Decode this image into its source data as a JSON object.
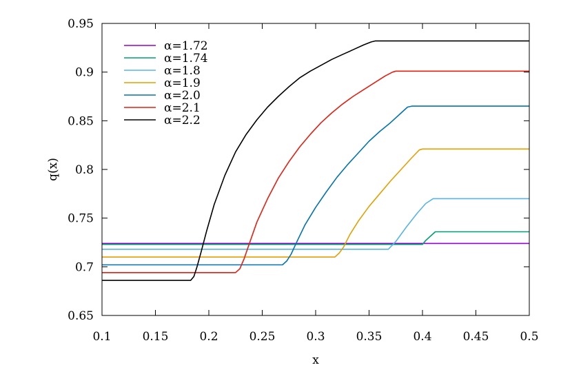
{
  "chart_data": {
    "type": "line",
    "xlabel": "x",
    "ylabel": "q(x)",
    "xlim": [
      0.1,
      0.5
    ],
    "ylim": [
      0.65,
      0.95
    ],
    "xticks": [
      "0.1",
      "0.15",
      "0.2",
      "0.25",
      "0.3",
      "0.35",
      "0.4",
      "0.45",
      "0.5"
    ],
    "yticks": [
      "0.65",
      "0.7",
      "0.75",
      "0.8",
      "0.85",
      "0.9",
      "0.95"
    ],
    "grid": false,
    "legend_position": "top-left",
    "series": [
      {
        "name": "α=1.72",
        "color": "#9400d3",
        "x": [
          0.1,
          0.5
        ],
        "y": [
          0.724,
          0.724
        ]
      },
      {
        "name": "α=1.74",
        "color": "#009e73",
        "x": [
          0.1,
          0.4,
          0.403,
          0.408,
          0.412,
          0.5
        ],
        "y": [
          0.723,
          0.723,
          0.727,
          0.732,
          0.736,
          0.736
        ]
      },
      {
        "name": "α=1.8",
        "color": "#56b4e9",
        "x": [
          0.1,
          0.368,
          0.375,
          0.385,
          0.395,
          0.403,
          0.41,
          0.5
        ],
        "y": [
          0.718,
          0.718,
          0.726,
          0.741,
          0.755,
          0.765,
          0.77,
          0.77
        ]
      },
      {
        "name": "α=1.9",
        "color": "#e69f00",
        "x": [
          0.1,
          0.318,
          0.322,
          0.326,
          0.332,
          0.34,
          0.35,
          0.36,
          0.37,
          0.38,
          0.39,
          0.397,
          0.4,
          0.5
        ],
        "y": [
          0.71,
          0.71,
          0.714,
          0.72,
          0.733,
          0.747,
          0.762,
          0.775,
          0.788,
          0.8,
          0.812,
          0.82,
          0.821,
          0.821
        ]
      },
      {
        "name": "α=2.0",
        "color": "#0072b2",
        "x": [
          0.1,
          0.269,
          0.273,
          0.277,
          0.283,
          0.29,
          0.3,
          0.31,
          0.32,
          0.33,
          0.34,
          0.35,
          0.36,
          0.37,
          0.38,
          0.386,
          0.39,
          0.5
        ],
        "y": [
          0.702,
          0.702,
          0.706,
          0.713,
          0.727,
          0.743,
          0.761,
          0.777,
          0.792,
          0.805,
          0.817,
          0.829,
          0.839,
          0.848,
          0.858,
          0.864,
          0.865,
          0.865
        ]
      },
      {
        "name": "α=2.1",
        "color": "#e51e10",
        "x": [
          0.1,
          0.225,
          0.229,
          0.233,
          0.238,
          0.245,
          0.255,
          0.265,
          0.275,
          0.285,
          0.295,
          0.305,
          0.315,
          0.325,
          0.335,
          0.345,
          0.355,
          0.365,
          0.372,
          0.375,
          0.5
        ],
        "y": [
          0.694,
          0.694,
          0.698,
          0.708,
          0.724,
          0.746,
          0.77,
          0.791,
          0.808,
          0.823,
          0.836,
          0.848,
          0.858,
          0.867,
          0.875,
          0.882,
          0.889,
          0.896,
          0.9,
          0.901,
          0.901
        ]
      },
      {
        "name": "α=2.2",
        "color": "#000000",
        "x": [
          0.1,
          0.183,
          0.186,
          0.189,
          0.193,
          0.198,
          0.205,
          0.215,
          0.225,
          0.235,
          0.245,
          0.255,
          0.265,
          0.275,
          0.285,
          0.295,
          0.305,
          0.315,
          0.325,
          0.335,
          0.345,
          0.352,
          0.356,
          0.5
        ],
        "y": [
          0.686,
          0.686,
          0.69,
          0.7,
          0.716,
          0.737,
          0.764,
          0.794,
          0.818,
          0.836,
          0.851,
          0.864,
          0.875,
          0.885,
          0.894,
          0.901,
          0.907,
          0.913,
          0.918,
          0.923,
          0.928,
          0.931,
          0.932,
          0.932
        ]
      }
    ]
  }
}
